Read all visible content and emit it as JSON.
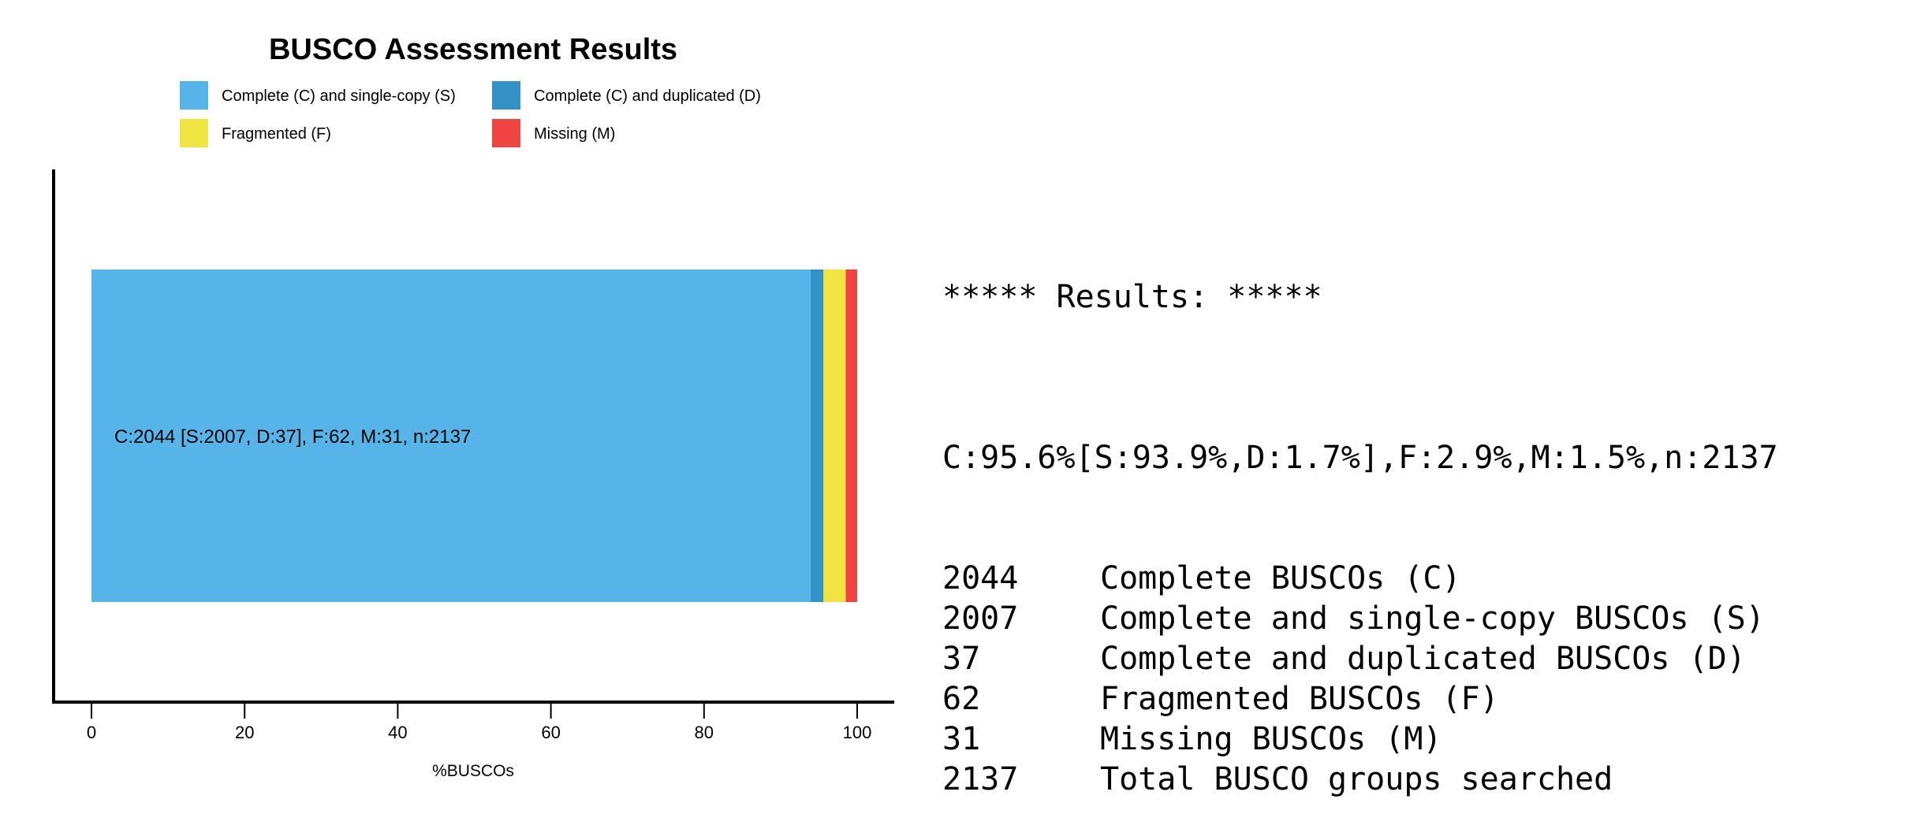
{
  "chart_data": {
    "type": "bar",
    "orientation": "horizontal",
    "stacked": true,
    "title": "BUSCO Assessment Results",
    "xlabel": "%BUSCOs",
    "ylabel": "",
    "xlim": [
      0,
      100
    ],
    "xticks": [
      "0",
      "20",
      "40",
      "60",
      "80",
      "100"
    ],
    "legend_position": "top",
    "series": [
      {
        "name": "Complete (C) and single-copy (S)",
        "values": [
          93.9
        ],
        "color": "#56B4E9"
      },
      {
        "name": "Complete (C) and duplicated (D)",
        "values": [
          1.7
        ],
        "color": "#3492C7"
      },
      {
        "name": "Fragmented (F)",
        "values": [
          2.9
        ],
        "color": "#F0E442"
      },
      {
        "name": "Missing (M)",
        "values": [
          1.5
        ],
        "color": "#F04442"
      }
    ],
    "bar_label": "C:2044 [S:2007, D:37], F:62, M:31, n:2137",
    "grid": false
  },
  "results": {
    "header": "***** Results: *****",
    "summary": "C:95.6%[S:93.9%,D:1.7%],F:2.9%,M:1.5%,n:2137",
    "rows": [
      {
        "count": "2044",
        "label": "Complete BUSCOs (C)"
      },
      {
        "count": "2007",
        "label": "Complete and single-copy BUSCOs (S)"
      },
      {
        "count": "37",
        "label": "Complete and duplicated BUSCOs (D)"
      },
      {
        "count": "62",
        "label": "Fragmented BUSCOs (F)"
      },
      {
        "count": "31",
        "label": "Missing BUSCOs (M)"
      },
      {
        "count": "2137",
        "label": "Total BUSCO groups searched"
      }
    ]
  }
}
